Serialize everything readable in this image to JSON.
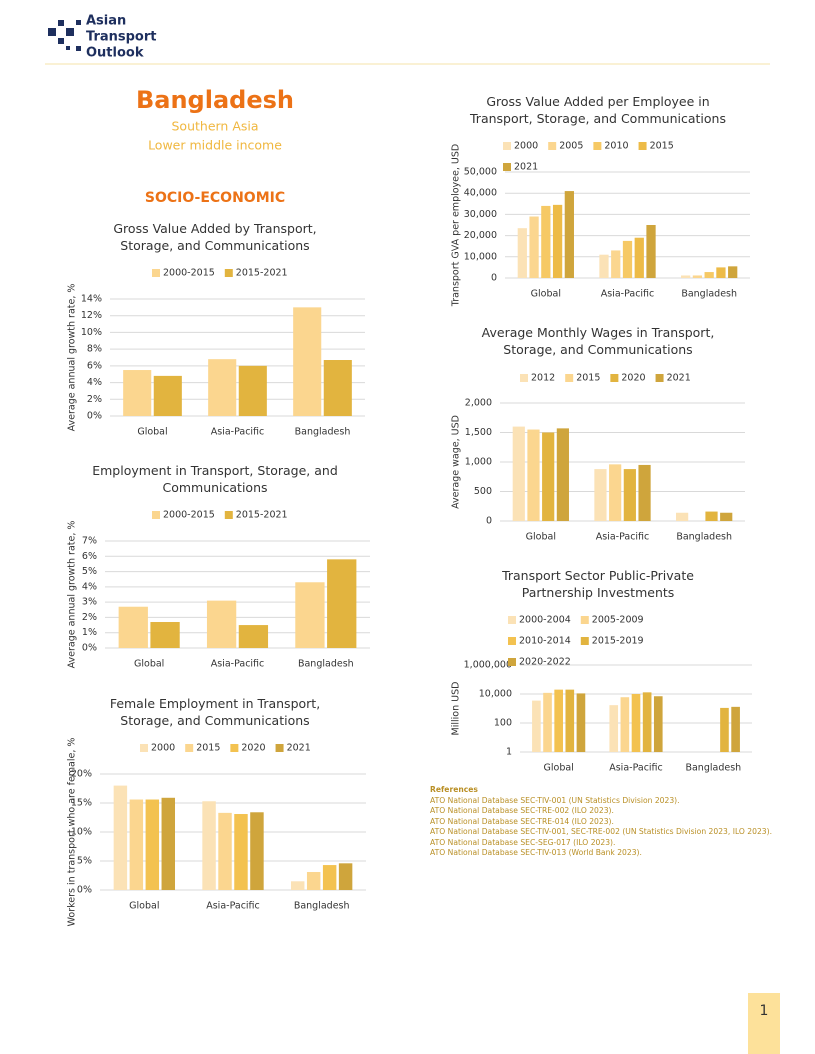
{
  "header": {
    "logo": [
      "Asian",
      "Transport",
      "Outlook"
    ],
    "country": "Bangladesh",
    "region": "Southern Asia",
    "income": "Lower middle income",
    "section": "SOCIO-ECONOMIC"
  },
  "chart_data": [
    {
      "type": "bar",
      "title": "Gross Value Added by Transport, Storage, and Communications",
      "y_label": "Average annual growth rate, %",
      "categories": [
        "Global",
        "Asia-Pacific",
        "Bangladesh"
      ],
      "series": [
        {
          "name": "2000-2015",
          "color": "#fbd68f",
          "values": [
            5.5,
            6.8,
            13.0
          ]
        },
        {
          "name": "2015-2021",
          "color": "#e2b43f",
          "values": [
            4.8,
            6.0,
            6.7
          ]
        }
      ],
      "ylim": [
        0,
        14
      ],
      "yticks": [
        {
          "value": 0,
          "label": "0%"
        },
        {
          "value": 2,
          "label": "2%"
        },
        {
          "value": 4,
          "label": "4%"
        },
        {
          "value": 6,
          "label": "6%"
        },
        {
          "value": 8,
          "label": "8%"
        },
        {
          "value": 10,
          "label": "10%"
        },
        {
          "value": 12,
          "label": "12%"
        },
        {
          "value": 14,
          "label": "14%"
        }
      ],
      "grid": true
    },
    {
      "type": "bar",
      "title": "Employment in Transport, Storage, and Communications",
      "y_label": "Average annual growth rate, %",
      "categories": [
        "Global",
        "Asia-Pacific",
        "Bangladesh"
      ],
      "series": [
        {
          "name": "2000-2015",
          "color": "#fbd68f",
          "values": [
            2.7,
            3.1,
            4.3
          ]
        },
        {
          "name": "2015-2021",
          "color": "#e2b43f",
          "values": [
            1.7,
            1.5,
            5.8
          ]
        }
      ],
      "ylim": [
        0,
        7
      ],
      "yticks": [
        {
          "value": 0,
          "label": "0%"
        },
        {
          "value": 1,
          "label": "1%"
        },
        {
          "value": 2,
          "label": "2%"
        },
        {
          "value": 3,
          "label": "3%"
        },
        {
          "value": 4,
          "label": "4%"
        },
        {
          "value": 5,
          "label": "5%"
        },
        {
          "value": 6,
          "label": "6%"
        },
        {
          "value": 7,
          "label": "7%"
        }
      ],
      "grid": true
    },
    {
      "type": "bar",
      "title": "Female Employment in Transport, Storage, and Communications",
      "y_label": "Workers in transport who are female, %",
      "categories": [
        "Global",
        "Asia-Pacific",
        "Bangladesh"
      ],
      "series": [
        {
          "name": "2000",
          "color": "#fbe2b6",
          "values": [
            18.0,
            15.3,
            1.5
          ]
        },
        {
          "name": "2015",
          "color": "#fbd68f",
          "values": [
            15.6,
            13.3,
            3.1
          ]
        },
        {
          "name": "2020",
          "color": "#f3c250",
          "values": [
            15.6,
            13.1,
            4.3
          ]
        },
        {
          "name": "2021",
          "color": "#cfa53c",
          "values": [
            15.9,
            13.4,
            4.6
          ]
        }
      ],
      "ylim": [
        0,
        20
      ],
      "yticks": [
        {
          "value": 0,
          "label": "0%"
        },
        {
          "value": 5,
          "label": "5%"
        },
        {
          "value": 10,
          "label": "10%"
        },
        {
          "value": 15,
          "label": "15%"
        },
        {
          "value": 20,
          "label": "20%"
        }
      ],
      "grid": true
    },
    {
      "type": "bar",
      "title": "Gross Value Added per Employee in Transport, Storage, and Communications",
      "y_label": "Transport GVA per employee, USD",
      "categories": [
        "Global",
        "Asia-Pacific",
        "Bangladesh"
      ],
      "series": [
        {
          "name": "2000",
          "color": "#fbe2b6",
          "values": [
            23500,
            11000,
            1200
          ]
        },
        {
          "name": "2005",
          "color": "#fbd68f",
          "values": [
            29000,
            13000,
            1200
          ]
        },
        {
          "name": "2010",
          "color": "#f6c965",
          "values": [
            34000,
            17500,
            2800
          ]
        },
        {
          "name": "2015",
          "color": "#edbb47",
          "values": [
            34500,
            19000,
            5000
          ]
        },
        {
          "name": "2021",
          "color": "#cfa53c",
          "values": [
            41000,
            25000,
            5500
          ]
        }
      ],
      "ylim": [
        0,
        50000
      ],
      "yticks": [
        0,
        {
          "value": 10000,
          "label": "10,000"
        },
        {
          "value": 20000,
          "label": "20,000"
        },
        {
          "value": 30000,
          "label": "30,000"
        },
        {
          "value": 40000,
          "label": "40,000"
        },
        {
          "value": 50000,
          "label": "50,000"
        }
      ],
      "grid": true
    },
    {
      "type": "bar",
      "title": "Average Monthly Wages in Transport, Storage, and Communications",
      "y_label": "Average wage, USD",
      "categories": [
        "Global",
        "Asia-Pacific",
        "Bangladesh"
      ],
      "series": [
        {
          "name": "2012",
          "color": "#fbe2b6",
          "values": [
            1600,
            880,
            140
          ]
        },
        {
          "name": "2015",
          "color": "#fbd68f",
          "values": [
            1550,
            960,
            null
          ]
        },
        {
          "name": "2020",
          "color": "#e2b43f",
          "values": [
            1500,
            880,
            160
          ]
        },
        {
          "name": "2021",
          "color": "#cfa53c",
          "values": [
            1570,
            950,
            140
          ]
        }
      ],
      "ylim": [
        0,
        2000
      ],
      "yticks": [
        0,
        500,
        {
          "value": 1000,
          "label": "1,000"
        },
        {
          "value": 1500,
          "label": "1,500"
        },
        {
          "value": 2000,
          "label": "2,000"
        }
      ],
      "grid": true
    },
    {
      "type": "bar",
      "title": "Transport Sector Public-Private Partnership Investments",
      "y_label": "Million USD",
      "log_scale": true,
      "categories": [
        "Global",
        "Asia-Pacific",
        "Bangladesh"
      ],
      "series": [
        {
          "name": "2000-2004",
          "color": "#fbe2b6",
          "values": [
            3500,
            1700,
            null
          ]
        },
        {
          "name": "2005-2009",
          "color": "#fbd68f",
          "values": [
            12000,
            6000,
            null
          ]
        },
        {
          "name": "2010-2014",
          "color": "#f3c250",
          "values": [
            20000,
            10000,
            null
          ]
        },
        {
          "name": "2015-2019",
          "color": "#e2b43f",
          "values": [
            20000,
            13000,
            1100
          ]
        },
        {
          "name": "2020-2022",
          "color": "#cfa53c",
          "values": [
            11000,
            7000,
            1300
          ]
        }
      ],
      "ylim": [
        1,
        1000000
      ],
      "yticks": [
        1,
        100,
        {
          "value": 10000,
          "label": "10,000"
        },
        {
          "value": 1000000,
          "label": "1,000,000"
        }
      ],
      "grid": true
    }
  ],
  "references": {
    "title": "References",
    "items": [
      "ATO National Database SEC-TIV-001 (UN Statistics Division 2023).",
      "ATO National Database SEC-TRE-002 (ILO 2023).",
      "ATO National Database SEC-TRE-014 (ILO 2023).",
      "ATO National Database SEC-TIV-001, SEC-TRE-002 (UN Statistics Division 2023, ILO 2023).",
      "ATO National Database SEC-SEG-017 (ILO 2023).",
      "ATO National Database SEC-TIV-013 (World Bank 2023)."
    ]
  },
  "page_number": "1"
}
